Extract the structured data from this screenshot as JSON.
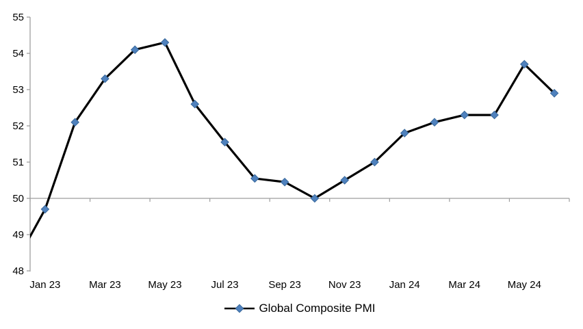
{
  "page": {
    "background_color": "#ffffff"
  },
  "chart_data": {
    "type": "line",
    "title": "",
    "categories": [
      "Jan 23",
      "Feb 23",
      "Mar 23",
      "Apr 23",
      "May 23",
      "Jun 23",
      "Jul 23",
      "Aug 23",
      "Sep 23",
      "Oct 23",
      "Nov 23",
      "Dec 23",
      "Jan 24",
      "Feb 24",
      "Mar 24",
      "Apr 24",
      "May 24",
      "Jun 24"
    ],
    "series": [
      {
        "name": "Global Composite PMI",
        "values": [
          49.7,
          52.1,
          53.3,
          54.1,
          54.3,
          52.6,
          51.55,
          50.55,
          50.45,
          50.0,
          50.5,
          51.0,
          51.8,
          52.1,
          52.3,
          52.3,
          53.7,
          52.9
        ],
        "line_color": "#000000",
        "marker": "diamond",
        "marker_color": "#4F81BD",
        "marker_edge_color": "#38689B"
      }
    ],
    "lead_in_point": {
      "category": "Dec 22",
      "value": 48.2,
      "clipped_at_left_axis": true,
      "value_at_left_axis_intercept": 48.9
    },
    "y_axis": {
      "min": 48,
      "max": 55,
      "tick_interval": 1,
      "tick_labels": [
        "48",
        "49",
        "50",
        "51",
        "52",
        "53",
        "54",
        "55"
      ]
    },
    "x_axis": {
      "tick_labels": [
        "Jan 23",
        "Mar 23",
        "May 23",
        "Jul 23",
        "Sep 23",
        "Nov 23",
        "Jan 24",
        "Mar 24",
        "May 24"
      ],
      "label_every_n_categories": 2,
      "crosses_at_value": 50
    },
    "legend": {
      "label": "Global Composite PMI",
      "position": "bottom"
    },
    "axis_color": "#9E9E9E",
    "grid": false
  }
}
